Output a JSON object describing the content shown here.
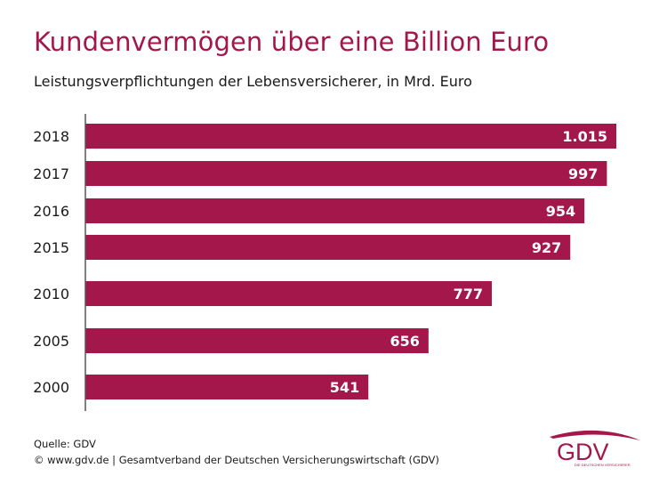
{
  "title": "Kundenvermögen über eine Billion Euro",
  "subtitle": "Leistungsverpflichtungen der Lebensversicherer, in Mrd. Euro",
  "footer": {
    "source": "Quelle: GDV",
    "copyright": "© www.gdv.de | Gesamtverband der Deutschen Versicherungswirtschaft (GDV)"
  },
  "logo": {
    "text": "GDV",
    "tagline": "DIE DEUTSCHEN VERSICHERER"
  },
  "colors": {
    "bar": "#a3174b",
    "title": "#a3174b",
    "axis": "#555555",
    "bar_label": "#ffffff"
  },
  "chart_data": {
    "type": "bar",
    "orientation": "horizontal",
    "categories": [
      "2018",
      "2017",
      "2016",
      "2015",
      "2010",
      "2005",
      "2000"
    ],
    "values": [
      1015,
      997,
      954,
      927,
      777,
      656,
      541
    ],
    "value_labels": [
      "1.015",
      "997",
      "954",
      "927",
      "777",
      "656",
      "541"
    ],
    "title": "Kundenvermögen über eine Billion Euro",
    "subtitle": "Leistungsverpflichtungen der Lebensversicherer, in Mrd. Euro",
    "xlabel": "",
    "ylabel": "",
    "xlim": [
      0,
      1050
    ],
    "grid": false,
    "legend": "none"
  }
}
